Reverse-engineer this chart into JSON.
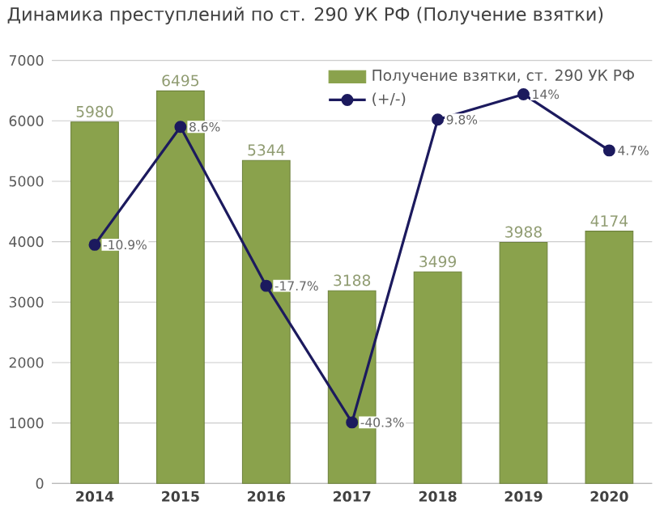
{
  "chart_data": {
    "type": "bar",
    "title": "Динамика преступлений по ст. 290 УК РФ (Получение взятки)",
    "categories": [
      "2014",
      "2015",
      "2016",
      "2017",
      "2018",
      "2019",
      "2020"
    ],
    "series": [
      {
        "name": "Получение взятки, ст. 290 УК РФ",
        "color": "#8aa24c",
        "values": [
          5980,
          6495,
          5344,
          3188,
          3499,
          3988,
          4174
        ],
        "value_labels": [
          "5980",
          "6495",
          "5344",
          "3188",
          "3499",
          "3988",
          "4174"
        ]
      },
      {
        "name": "(+/-)",
        "type": "line",
        "axis": "y2",
        "color": "#1c1a5e",
        "values": [
          -10.9,
          8.6,
          -17.7,
          -40.3,
          9.8,
          14,
          4.7
        ],
        "value_labels": [
          "-10.9%",
          "8.6%",
          "-17.7%",
          "-40.3%",
          "9.8%",
          "14%",
          "4.7%"
        ]
      }
    ],
    "ylim": [
      0,
      7000
    ],
    "yticks": [
      0,
      1000,
      2000,
      3000,
      4000,
      5000,
      6000,
      7000
    ],
    "y2lim": [
      -50.4,
      19.6
    ],
    "grid": "y",
    "legend": "top right",
    "marker": "circle",
    "line_style": "solid"
  }
}
